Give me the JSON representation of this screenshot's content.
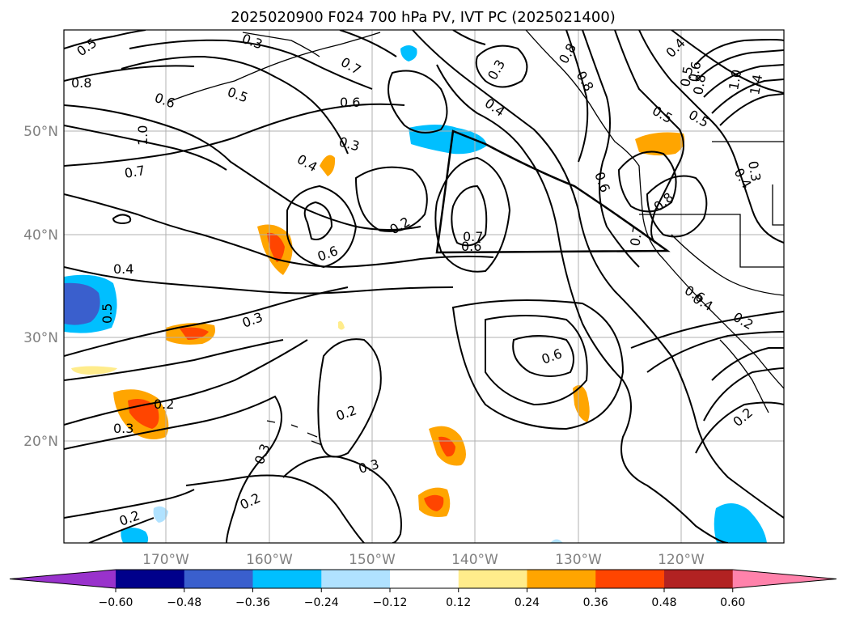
{
  "title": "2025020900 F024 700 hPa PV, IVT PC (2025021400)",
  "lon_labels": [
    "170°W",
    "160°W",
    "150°W",
    "140°W",
    "130°W",
    "120°W"
  ],
  "lat_labels": [
    "50°N",
    "40°N",
    "30°N",
    "20°N"
  ],
  "colorbar": {
    "ticks": [
      "−0.60",
      "−0.48",
      "−0.36",
      "−0.24",
      "−0.12",
      "0.12",
      "0.24",
      "0.36",
      "0.48",
      "0.60"
    ],
    "colors": [
      "#9932cc",
      "#00008b",
      "#3a5fcd",
      "#00bfff",
      "#b0e2ff",
      "#ffffff",
      "#ffec8b",
      "#ffa500",
      "#ff4500",
      "#b22222",
      "#ff82ab"
    ]
  },
  "contour_labels": [
    "0.5",
    "0.8",
    "0.6",
    "1.0",
    "0.7",
    "0.4",
    "0.5",
    "0.3",
    "0.2",
    "0.3",
    "0.2",
    "0.2",
    "0.3",
    "0.3",
    "0.2",
    "0.3",
    "0.4",
    "0.5",
    "0.6",
    "0.7",
    "0.6",
    "0.2",
    "0.6",
    "0.4",
    "0.3",
    "0.6",
    "0.8",
    "0.7",
    "0.8",
    "0.4",
    "0.5",
    "0.6",
    "0.8",
    "0.7",
    "0.6",
    "0.4",
    "0.2",
    "0.2",
    "0.3",
    "0.8",
    "1.0",
    "1.4",
    "0.3",
    "0.4",
    "0.5",
    "0.6",
    "0.5"
  ]
}
